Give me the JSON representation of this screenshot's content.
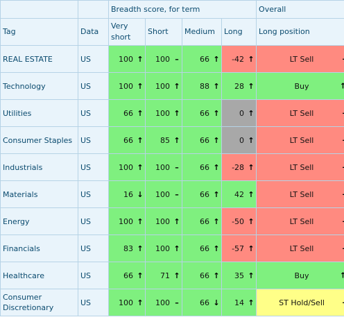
{
  "header": {
    "group_breadth": "Breadth score, for term",
    "group_overall": "Overall",
    "col_tag": "Tag",
    "col_data": "Data",
    "col_very_short": "Very short",
    "col_short": "Short",
    "col_medium": "Medium",
    "col_long": "Long",
    "col_long_position": "Long position"
  },
  "colors": {
    "green": "#7ff07f",
    "red": "#ff8a80",
    "gray": "#a8a8a8",
    "yellow": "#ffff88"
  },
  "rows": [
    {
      "tag": "REAL ESTATE",
      "data": "US",
      "vs": "100",
      "vs_t": "↑",
      "s": "100",
      "s_t": "–",
      "m": "66",
      "m_t": "↑",
      "l": "-42",
      "l_t": "↑",
      "pos": "LT Sell",
      "pos_t": "–"
    },
    {
      "tag": "Technology",
      "data": "US",
      "vs": "100",
      "vs_t": "↑",
      "s": "100",
      "s_t": "↑",
      "m": "88",
      "m_t": "↑",
      "l": "28",
      "l_t": "↑",
      "pos": "Buy",
      "pos_t": "↑"
    },
    {
      "tag": "Utilities",
      "data": "US",
      "vs": "66",
      "vs_t": "↑",
      "s": "100",
      "s_t": "↑",
      "m": "66",
      "m_t": "↑",
      "l": "0",
      "l_t": "↑",
      "pos": "LT Sell",
      "pos_t": "–"
    },
    {
      "tag": "Consumer Staples",
      "data": "US",
      "vs": "66",
      "vs_t": "↑",
      "s": "85",
      "s_t": "↑",
      "m": "66",
      "m_t": "↑",
      "l": "0",
      "l_t": "↑",
      "pos": "LT Sell",
      "pos_t": "–"
    },
    {
      "tag": "Industrials",
      "data": "US",
      "vs": "100",
      "vs_t": "↑",
      "s": "100",
      "s_t": "–",
      "m": "66",
      "m_t": "↑",
      "l": "-28",
      "l_t": "↑",
      "pos": "LT Sell",
      "pos_t": "–"
    },
    {
      "tag": "Materials",
      "data": "US",
      "vs": "16",
      "vs_t": "↓",
      "s": "100",
      "s_t": "–",
      "m": "66",
      "m_t": "↑",
      "l": "42",
      "l_t": "↑",
      "pos": "LT Sell",
      "pos_t": "–"
    },
    {
      "tag": "Energy",
      "data": "US",
      "vs": "100",
      "vs_t": "↑",
      "s": "100",
      "s_t": "↑",
      "m": "66",
      "m_t": "↑",
      "l": "-50",
      "l_t": "↑",
      "pos": "LT Sell",
      "pos_t": "–"
    },
    {
      "tag": "Financials",
      "data": "US",
      "vs": "83",
      "vs_t": "↑",
      "s": "100",
      "s_t": "↑",
      "m": "66",
      "m_t": "↑",
      "l": "-57",
      "l_t": "↑",
      "pos": "LT Sell",
      "pos_t": "–"
    },
    {
      "tag": "Healthcare",
      "data": "US",
      "vs": "66",
      "vs_t": "↑",
      "s": "71",
      "s_t": "↑",
      "m": "66",
      "m_t": "↑",
      "l": "35",
      "l_t": "↑",
      "pos": "Buy",
      "pos_t": "↑"
    },
    {
      "tag": "Consumer Discretionary",
      "data": "US",
      "vs": "100",
      "vs_t": "↑",
      "s": "100",
      "s_t": "–",
      "m": "66",
      "m_t": "↓",
      "l": "14",
      "l_t": "↑",
      "pos": "ST Hold/Sell",
      "pos_t": "–"
    }
  ]
}
